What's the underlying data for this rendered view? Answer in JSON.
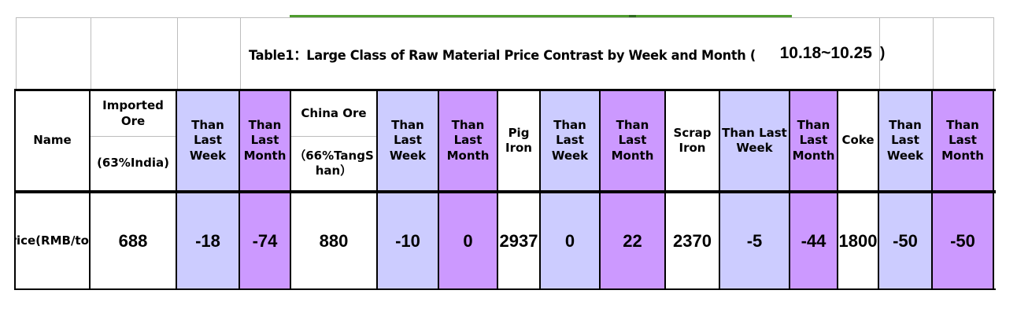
{
  "title": {
    "prefix": "Table1：Large Class of Raw Material Price Contrast by Week and Month (",
    "date_range": "10.18~10.25",
    "suffix": ")"
  },
  "colors": {
    "than_week_bg": "#CCCCFF",
    "than_month_bg": "#CC99FF",
    "accent_line_green": "#4E9C2E",
    "gridline_gray": "#BDBDBD"
  },
  "table": {
    "columns": [
      {
        "type": "plain",
        "header": "Name",
        "value": "Price(RMB/ton)"
      },
      {
        "type": "split",
        "header_top": "Imported Ore",
        "header_bottom": "(63%India)",
        "value": "688"
      },
      {
        "type": "week",
        "header": "Than Last Week",
        "value": "-18"
      },
      {
        "type": "month",
        "header": "Than Last Month",
        "value": "-74"
      },
      {
        "type": "split",
        "header_top": "China Ore",
        "header_bottom": "（66%TangShan）",
        "value": "880"
      },
      {
        "type": "week",
        "header": "Than Last Week",
        "value": "-10"
      },
      {
        "type": "month",
        "header": "Than Last Month",
        "value": "0"
      },
      {
        "type": "plain",
        "header": "Pig Iron",
        "value": "2937"
      },
      {
        "type": "week",
        "header": "Than Last Week",
        "value": "0"
      },
      {
        "type": "month",
        "header": "Than Last Month",
        "value": "22"
      },
      {
        "type": "plain",
        "header": "Scrap Iron",
        "value": "2370"
      },
      {
        "type": "week",
        "header": "Than Last Week",
        "value": "-5"
      },
      {
        "type": "month",
        "header": "Than Last Month",
        "value": "-44"
      },
      {
        "type": "plain",
        "header": "Coke",
        "value": "1800"
      },
      {
        "type": "week",
        "header": "Than Last Week",
        "value": "-50"
      },
      {
        "type": "month",
        "header": "Than Last Month",
        "value": "-50"
      }
    ]
  }
}
